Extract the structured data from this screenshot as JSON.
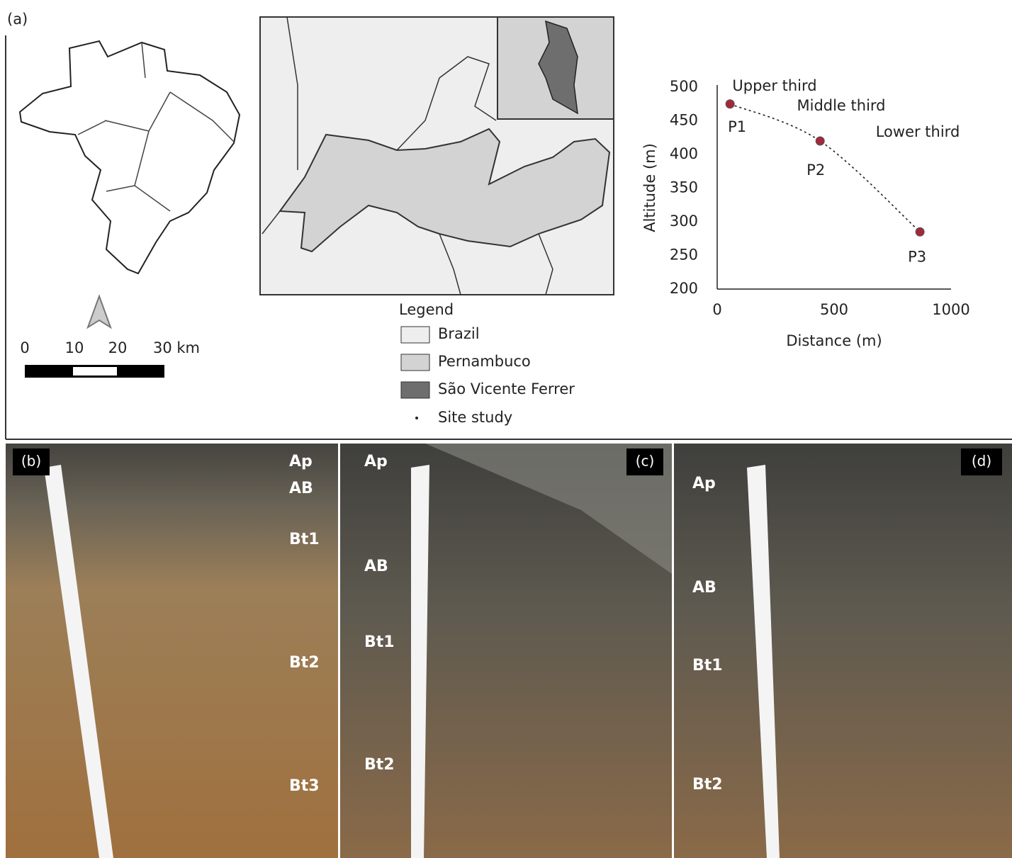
{
  "panel_labels": [
    "(a)",
    "(b)",
    "(c)",
    "(d)"
  ],
  "scale_bar": {
    "labels": [
      "0",
      "10",
      "20",
      "30 km"
    ]
  },
  "legend": {
    "title": "Legend",
    "items": [
      "Brazil",
      "Pernambuco",
      "São Vicente Ferrer",
      "Site study"
    ]
  },
  "chart_data": {
    "type": "line",
    "xlabel": "Distance (m)",
    "ylabel": "Altitude (m)",
    "x": [
      55,
      440,
      867
    ],
    "values": [
      475,
      420,
      285
    ],
    "point_labels": [
      "P1",
      "P2",
      "P3"
    ],
    "annotations": [
      "Upper third",
      "Middle third",
      "Lower third"
    ],
    "xlim": [
      0,
      1000
    ],
    "ylim": [
      200,
      500
    ],
    "xticks": [
      0,
      500,
      1000
    ],
    "yticks": [
      200,
      250,
      300,
      350,
      400,
      450,
      500
    ],
    "color": "#a3283c",
    "line_style": "dotted"
  },
  "photos": [
    {
      "horizons": [
        "Ap",
        "AB",
        "Bt1",
        "Bt2",
        "Bt3"
      ]
    },
    {
      "horizons": [
        "Ap",
        "AB",
        "Bt1",
        "Bt2"
      ]
    },
    {
      "horizons": [
        "Ap",
        "AB",
        "Bt1",
        "Bt2"
      ]
    }
  ]
}
